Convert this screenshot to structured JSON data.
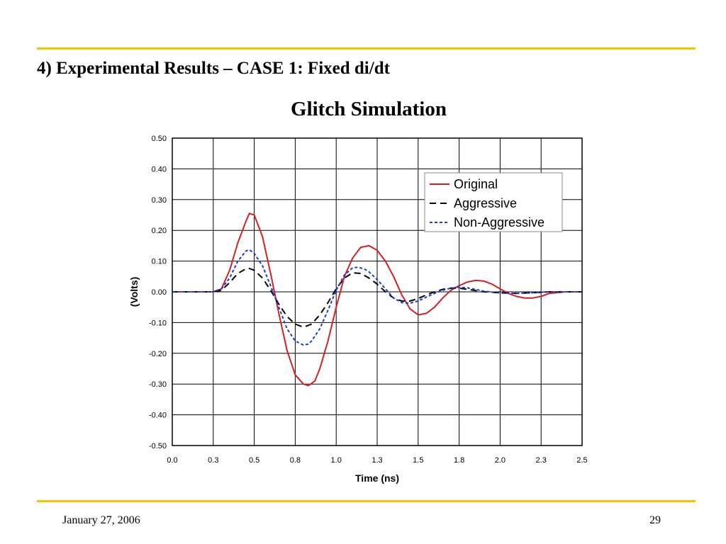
{
  "slide": {
    "title": "4) Experimental Results – CASE 1: Fixed di/dt",
    "footer_date": "January 27, 2006",
    "page_number": "29",
    "rule_color": "#f5c400"
  },
  "chart_data": {
    "type": "line",
    "title": "Glitch Simulation",
    "xlabel": "Time (ns)",
    "ylabel": "(Volts)",
    "xlim": [
      0.0,
      2.5
    ],
    "ylim": [
      -0.5,
      0.5
    ],
    "x_tick_labels": [
      "0.0",
      "0.3",
      "0.5",
      "0.8",
      "1.0",
      "1.3",
      "1.5",
      "1.8",
      "2.0",
      "2.3",
      "2.5"
    ],
    "y_tick_labels": [
      "0.50",
      "0.40",
      "0.30",
      "0.20",
      "0.10",
      "0.00",
      "-0.10",
      "-0.20",
      "-0.30",
      "-0.40",
      "-0.50"
    ],
    "grid": true,
    "legend_position": "top-right",
    "series": [
      {
        "name": "Original",
        "color": "#d42020",
        "style": "solid",
        "points": [
          [
            0.0,
            0.0
          ],
          [
            0.2,
            0.0
          ],
          [
            0.25,
            0.0
          ],
          [
            0.3,
            0.01
          ],
          [
            0.35,
            0.07
          ],
          [
            0.4,
            0.16
          ],
          [
            0.45,
            0.23
          ],
          [
            0.47,
            0.255
          ],
          [
            0.5,
            0.25
          ],
          [
            0.55,
            0.18
          ],
          [
            0.6,
            0.06
          ],
          [
            0.65,
            -0.07
          ],
          [
            0.7,
            -0.19
          ],
          [
            0.75,
            -0.27
          ],
          [
            0.8,
            -0.3
          ],
          [
            0.83,
            -0.305
          ],
          [
            0.87,
            -0.29
          ],
          [
            0.9,
            -0.25
          ],
          [
            0.95,
            -0.16
          ],
          [
            1.0,
            -0.05
          ],
          [
            1.05,
            0.05
          ],
          [
            1.1,
            0.11
          ],
          [
            1.15,
            0.145
          ],
          [
            1.2,
            0.15
          ],
          [
            1.25,
            0.135
          ],
          [
            1.3,
            0.1
          ],
          [
            1.35,
            0.05
          ],
          [
            1.4,
            -0.01
          ],
          [
            1.45,
            -0.055
          ],
          [
            1.5,
            -0.075
          ],
          [
            1.55,
            -0.07
          ],
          [
            1.6,
            -0.05
          ],
          [
            1.65,
            -0.02
          ],
          [
            1.7,
            0.005
          ],
          [
            1.75,
            0.02
          ],
          [
            1.8,
            0.032
          ],
          [
            1.85,
            0.037
          ],
          [
            1.9,
            0.035
          ],
          [
            1.95,
            0.025
          ],
          [
            2.0,
            0.01
          ],
          [
            2.05,
            -0.005
          ],
          [
            2.1,
            -0.015
          ],
          [
            2.15,
            -0.02
          ],
          [
            2.2,
            -0.02
          ],
          [
            2.25,
            -0.015
          ],
          [
            2.3,
            -0.005
          ],
          [
            2.4,
            0.0
          ],
          [
            2.5,
            0.0
          ]
        ]
      },
      {
        "name": "Aggressive",
        "color": "#000000",
        "style": "dashed",
        "points": [
          [
            0.0,
            0.0
          ],
          [
            0.25,
            0.0
          ],
          [
            0.3,
            0.005
          ],
          [
            0.35,
            0.03
          ],
          [
            0.4,
            0.06
          ],
          [
            0.45,
            0.075
          ],
          [
            0.47,
            0.076
          ],
          [
            0.5,
            0.07
          ],
          [
            0.55,
            0.045
          ],
          [
            0.6,
            0.005
          ],
          [
            0.65,
            -0.04
          ],
          [
            0.7,
            -0.08
          ],
          [
            0.75,
            -0.105
          ],
          [
            0.8,
            -0.115
          ],
          [
            0.85,
            -0.105
          ],
          [
            0.9,
            -0.075
          ],
          [
            0.95,
            -0.035
          ],
          [
            1.0,
            0.01
          ],
          [
            1.05,
            0.045
          ],
          [
            1.1,
            0.062
          ],
          [
            1.15,
            0.06
          ],
          [
            1.2,
            0.045
          ],
          [
            1.25,
            0.025
          ],
          [
            1.3,
            0.0
          ],
          [
            1.35,
            -0.02
          ],
          [
            1.4,
            -0.03
          ],
          [
            1.45,
            -0.03
          ],
          [
            1.5,
            -0.022
          ],
          [
            1.55,
            -0.01
          ],
          [
            1.6,
            0.0
          ],
          [
            1.65,
            0.008
          ],
          [
            1.7,
            0.012
          ],
          [
            1.75,
            0.012
          ],
          [
            1.8,
            0.008
          ],
          [
            1.9,
            0.0
          ],
          [
            2.0,
            -0.003
          ],
          [
            2.1,
            -0.005
          ],
          [
            2.2,
            -0.003
          ],
          [
            2.3,
            0.0
          ],
          [
            2.5,
            0.0
          ]
        ]
      },
      {
        "name": "Non-Aggressive",
        "color": "#1a3ad6",
        "style": "dotted",
        "points": [
          [
            0.0,
            0.0
          ],
          [
            0.25,
            0.0
          ],
          [
            0.3,
            0.01
          ],
          [
            0.35,
            0.045
          ],
          [
            0.4,
            0.1
          ],
          [
            0.45,
            0.133
          ],
          [
            0.47,
            0.137
          ],
          [
            0.5,
            0.125
          ],
          [
            0.55,
            0.085
          ],
          [
            0.6,
            0.02
          ],
          [
            0.65,
            -0.05
          ],
          [
            0.7,
            -0.12
          ],
          [
            0.75,
            -0.16
          ],
          [
            0.8,
            -0.173
          ],
          [
            0.83,
            -0.17
          ],
          [
            0.85,
            -0.16
          ],
          [
            0.9,
            -0.12
          ],
          [
            0.95,
            -0.06
          ],
          [
            1.0,
            0.005
          ],
          [
            1.05,
            0.055
          ],
          [
            1.1,
            0.078
          ],
          [
            1.13,
            0.08
          ],
          [
            1.17,
            0.075
          ],
          [
            1.2,
            0.065
          ],
          [
            1.25,
            0.04
          ],
          [
            1.3,
            0.01
          ],
          [
            1.35,
            -0.02
          ],
          [
            1.4,
            -0.035
          ],
          [
            1.45,
            -0.037
          ],
          [
            1.5,
            -0.03
          ],
          [
            1.55,
            -0.017
          ],
          [
            1.6,
            -0.005
          ],
          [
            1.65,
            0.005
          ],
          [
            1.7,
            0.012
          ],
          [
            1.75,
            0.015
          ],
          [
            1.8,
            0.013
          ],
          [
            1.85,
            0.008
          ],
          [
            1.9,
            0.002
          ],
          [
            2.0,
            -0.004
          ],
          [
            2.1,
            -0.005
          ],
          [
            2.2,
            -0.003
          ],
          [
            2.3,
            0.0
          ],
          [
            2.5,
            0.0
          ]
        ]
      }
    ]
  }
}
